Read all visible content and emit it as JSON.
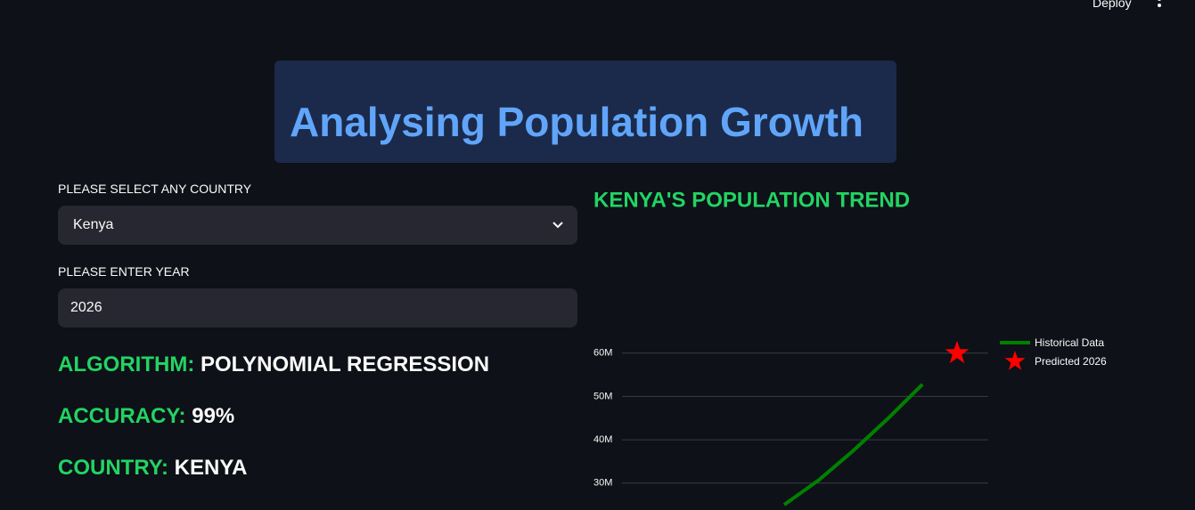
{
  "header": {
    "deploy": "Deploy"
  },
  "banner": {
    "title": "Analysing Population Growth"
  },
  "form": {
    "country_label": "PLEASE SELECT ANY COUNTRY",
    "country_value": "Kenya",
    "year_label": "PLEASE ENTER YEAR",
    "year_value": "2026"
  },
  "stats": [
    {
      "label": "ALGORITHM:",
      "value": "POLYNOMIAL REGRESSION"
    },
    {
      "label": "ACCURACY:",
      "value": "99%"
    },
    {
      "label": "COUNTRY:",
      "value": "KENYA"
    }
  ],
  "chart_data": {
    "type": "line",
    "title": "KENYA'S POPULATION TREND",
    "categories": [
      null,
      null,
      null,
      null,
      null,
      null
    ],
    "series": [
      {
        "name": "Historical Data",
        "color": "#008000",
        "marker": "line",
        "values": [
          25,
          30.7,
          37.5,
          44.9,
          52.8,
          null
        ]
      },
      {
        "name": "Predicted 2026",
        "color": "#ff0000",
        "marker": "star",
        "values": [
          null,
          null,
          null,
          null,
          null,
          60
        ]
      }
    ],
    "ylim": [
      24,
      62
    ],
    "yticks": [
      {
        "value": 30,
        "label": "30M"
      },
      {
        "value": 40,
        "label": "40M"
      },
      {
        "value": 50,
        "label": "50M"
      },
      {
        "value": 60,
        "label": "60M"
      }
    ],
    "grid": true,
    "legend": "upper right"
  }
}
